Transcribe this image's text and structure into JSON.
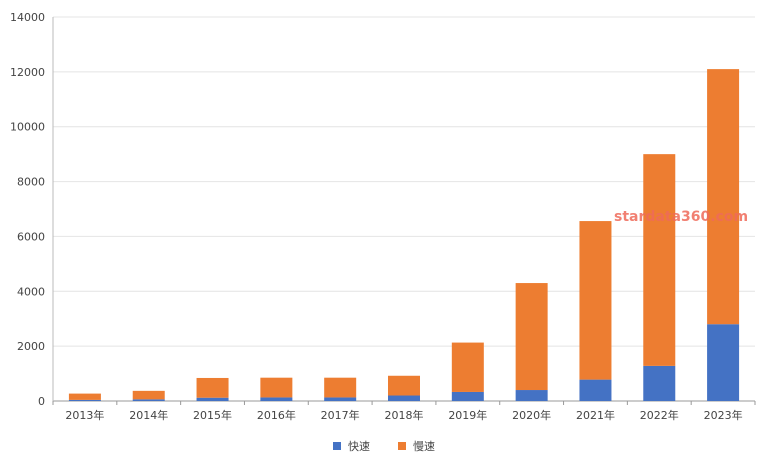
{
  "chart_data": {
    "type": "bar",
    "stacked": true,
    "categories": [
      "2013年",
      "2014年",
      "2015年",
      "2016年",
      "2017年",
      "2018年",
      "2019年",
      "2020年",
      "2021年",
      "2022年",
      "2023年"
    ],
    "series": [
      {
        "name": "快速",
        "color": "#4472c4",
        "values": [
          40,
          60,
          120,
          130,
          130,
          200,
          330,
          400,
          780,
          1280,
          2800
        ]
      },
      {
        "name": "慢速",
        "color": "#ed7d31",
        "values": [
          230,
          310,
          720,
          720,
          720,
          720,
          1800,
          3900,
          5780,
          7720,
          9300
        ]
      }
    ],
    "y_ticks": [
      0,
      2000,
      4000,
      6000,
      8000,
      10000,
      12000,
      14000
    ],
    "ylim": [
      0,
      14000
    ],
    "grid": true,
    "legend_position": "bottom",
    "watermark": "stardata360.com"
  }
}
